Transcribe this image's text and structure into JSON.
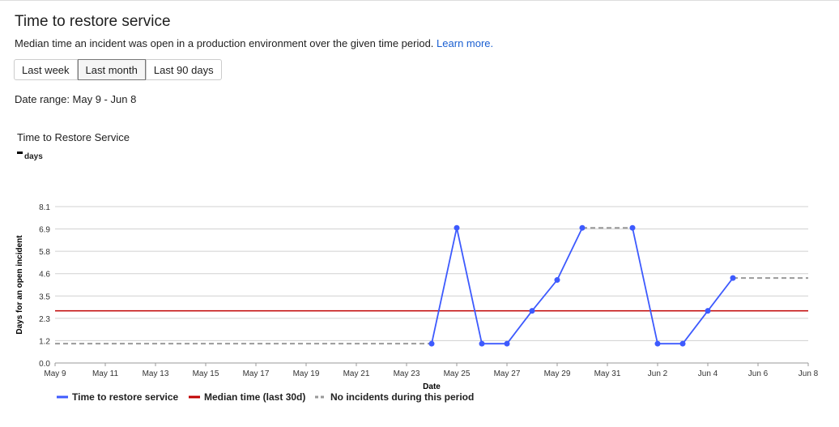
{
  "title": "Time to restore service",
  "description": "Median time an incident was open in a production environment over the given time period.",
  "learn_more": "Learn more.",
  "buttons": [
    "Last week",
    "Last month",
    "Last 90 days"
  ],
  "active_button": "Last month",
  "date_range": "Date range: May 9 - Jun 8",
  "chart_data": {
    "type": "line",
    "title": "Time to Restore Service",
    "unit_label": "days",
    "xlabel": "Date",
    "ylabel": "Days for an open incident",
    "ylim": [
      0,
      8.1
    ],
    "yticks": [
      "0.0",
      "1.2",
      "2.3",
      "3.5",
      "4.6",
      "5.8",
      "6.9",
      "8.1"
    ],
    "xticks": [
      "May 9",
      "May 11",
      "May 13",
      "May 15",
      "May 17",
      "May 19",
      "May 21",
      "May 23",
      "May 25",
      "May 27",
      "May 29",
      "May 31",
      "Jun 2",
      "Jun 4",
      "Jun 6",
      "Jun 8"
    ],
    "grid": true,
    "legend_position": "bottom",
    "colors": {
      "series": "#3d5afe",
      "median": "#c00000",
      "gap": "#999999"
    },
    "series": [
      {
        "name": "Time to restore service",
        "points": [
          [
            "May 24",
            1.0
          ],
          [
            "May 25",
            7.0
          ],
          [
            "May 26",
            1.0
          ],
          [
            "May 27",
            1.0
          ],
          [
            "May 28",
            2.7
          ],
          [
            "May 29",
            4.3
          ],
          [
            "May 30",
            7.0
          ]
        ]
      },
      {
        "name": "Time to restore service",
        "points": [
          [
            "Jun 1",
            7.0
          ],
          [
            "Jun 2",
            1.0
          ],
          [
            "Jun 3",
            1.0
          ],
          [
            "Jun 4",
            2.7
          ],
          [
            "Jun 5",
            4.4
          ]
        ]
      }
    ],
    "median": {
      "name": "Median time (last 30d)",
      "value": 2.7
    },
    "no_incident_segments": {
      "name": "No incidents during this period",
      "segments": [
        [
          [
            "May 9",
            1.0
          ],
          [
            "May 24",
            1.0
          ]
        ],
        [
          [
            "May 30",
            7.0
          ],
          [
            "Jun 1",
            7.0
          ]
        ],
        [
          [
            "Jun 5",
            4.4
          ],
          [
            "Jun 8",
            4.4
          ]
        ]
      ]
    }
  }
}
